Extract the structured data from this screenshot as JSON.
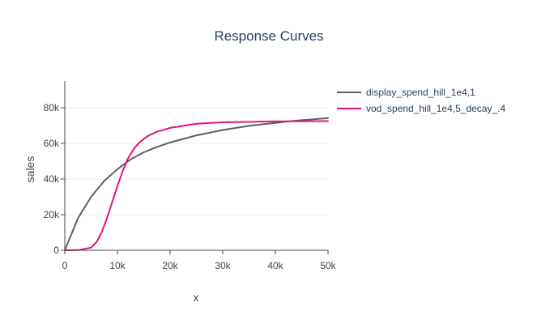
{
  "chart_data": {
    "type": "line",
    "title": "Response Curves",
    "xlabel": "x",
    "ylabel": "sales",
    "xlim": [
      0,
      50000
    ],
    "ylim": [
      0,
      95000
    ],
    "x_ticks": [
      0,
      10000,
      20000,
      30000,
      40000,
      50000
    ],
    "x_tick_labels": [
      "0",
      "10k",
      "20k",
      "30k",
      "40k",
      "50k"
    ],
    "y_ticks": [
      0,
      20000,
      40000,
      60000,
      80000
    ],
    "y_tick_labels": [
      "0",
      "20k",
      "40k",
      "60k",
      "80k"
    ],
    "grid": true,
    "legend_position": "right",
    "series": [
      {
        "name": "display_spend_hill_1e4,1",
        "color": "#5f5f5f",
        "x": [
          0,
          2500,
          5000,
          7500,
          10000,
          12500,
          15000,
          17500,
          20000,
          22500,
          25000,
          27500,
          30000,
          32500,
          35000,
          37500,
          40000,
          42500,
          45000,
          47500,
          50000
        ],
        "y": [
          0,
          18000,
          30000,
          39000,
          45500,
          51000,
          55000,
          58000,
          60500,
          62500,
          64500,
          66000,
          67500,
          68700,
          69800,
          70700,
          71500,
          72300,
          73000,
          73600,
          74200
        ]
      },
      {
        "name": "vod_spend_hill_1e4,5_decay_.4",
        "color": "#e6127d",
        "x": [
          0,
          2500,
          5000,
          6000,
          7000,
          8000,
          9000,
          10000,
          11000,
          12000,
          13000,
          14000,
          15000,
          16000,
          17500,
          20000,
          25000,
          30000,
          40000,
          50000
        ],
        "y": [
          0,
          100,
          1500,
          4500,
          10000,
          18000,
          27000,
          36000,
          44500,
          51500,
          56500,
          60000,
          62500,
          64500,
          66500,
          68700,
          71000,
          71800,
          72300,
          72500
        ]
      }
    ]
  }
}
